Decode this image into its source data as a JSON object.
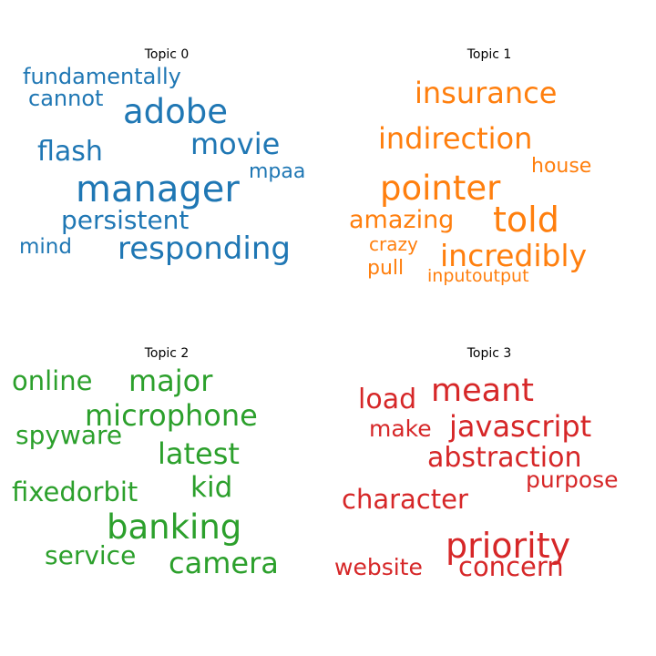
{
  "chart_data": [
    {
      "type": "wordcloud",
      "title": "Topic 0",
      "color": "#1f77b4",
      "words": [
        {
          "text": "fundamentally",
          "weight": 24
        },
        {
          "text": "cannot",
          "weight": 24
        },
        {
          "text": "adobe",
          "weight": 37
        },
        {
          "text": "movie",
          "weight": 32
        },
        {
          "text": "flash",
          "weight": 30
        },
        {
          "text": "mpaa",
          "weight": 22
        },
        {
          "text": "manager",
          "weight": 40
        },
        {
          "text": "persistent",
          "weight": 28
        },
        {
          "text": "mind",
          "weight": 23
        },
        {
          "text": "responding",
          "weight": 34
        }
      ]
    },
    {
      "type": "wordcloud",
      "title": "Topic 1",
      "color": "#ff7f0e",
      "words": [
        {
          "text": "insurance",
          "weight": 32
        },
        {
          "text": "indirection",
          "weight": 32
        },
        {
          "text": "house",
          "weight": 22
        },
        {
          "text": "pointer",
          "weight": 37
        },
        {
          "text": "amazing",
          "weight": 27
        },
        {
          "text": "told",
          "weight": 38
        },
        {
          "text": "crazy",
          "weight": 20
        },
        {
          "text": "incredibly",
          "weight": 33
        },
        {
          "text": "pull",
          "weight": 22
        },
        {
          "text": "inputoutput",
          "weight": 19
        }
      ]
    },
    {
      "type": "wordcloud",
      "title": "Topic 2",
      "color": "#2ca02c",
      "words": [
        {
          "text": "online",
          "weight": 29
        },
        {
          "text": "major",
          "weight": 32
        },
        {
          "text": "microphone",
          "weight": 32
        },
        {
          "text": "spyware",
          "weight": 28
        },
        {
          "text": "latest",
          "weight": 32
        },
        {
          "text": "fixedorbit",
          "weight": 29
        },
        {
          "text": "kid",
          "weight": 31
        },
        {
          "text": "banking",
          "weight": 37
        },
        {
          "text": "service",
          "weight": 28
        },
        {
          "text": "camera",
          "weight": 32
        }
      ]
    },
    {
      "type": "wordcloud",
      "title": "Topic 3",
      "color": "#d62728",
      "words": [
        {
          "text": "load",
          "weight": 30
        },
        {
          "text": "meant",
          "weight": 35
        },
        {
          "text": "make",
          "weight": 25
        },
        {
          "text": "javascript",
          "weight": 32
        },
        {
          "text": "abstraction",
          "weight": 30
        },
        {
          "text": "purpose",
          "weight": 25
        },
        {
          "text": "character",
          "weight": 29
        },
        {
          "text": "priority",
          "weight": 38
        },
        {
          "text": "website",
          "weight": 25
        },
        {
          "text": "concern",
          "weight": 29
        }
      ]
    }
  ]
}
